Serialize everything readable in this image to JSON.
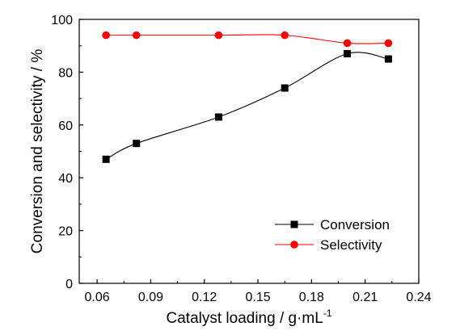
{
  "chart_data": {
    "type": "line",
    "title": "",
    "xlabel": "Catalyst loading / g·mL",
    "xlabel_superscript": "-1",
    "ylabel": "Conversion and selectivity / %",
    "xlim": [
      0.05,
      0.24
    ],
    "ylim": [
      0,
      100
    ],
    "x_ticks": [
      0.06,
      0.09,
      0.12,
      0.15,
      0.18,
      0.21,
      0.24
    ],
    "x_tick_labels": [
      "0.06",
      "0.09",
      "0.12",
      "0.15",
      "0.18",
      "0.21",
      "0.24"
    ],
    "y_ticks": [
      0,
      20,
      40,
      60,
      80,
      100
    ],
    "y_tick_labels": [
      "0",
      "20",
      "40",
      "60",
      "80",
      "100"
    ],
    "grid": false,
    "legend_position": "bottom-right",
    "series": [
      {
        "name": "Conversion",
        "marker": "square",
        "color": "#000000",
        "x": [
          0.065,
          0.082,
          0.128,
          0.165,
          0.2,
          0.223
        ],
        "y": [
          47,
          53,
          63,
          74,
          87,
          85
        ]
      },
      {
        "name": "Selectivity",
        "marker": "circle",
        "color": "#ff0000",
        "x": [
          0.065,
          0.082,
          0.128,
          0.165,
          0.2,
          0.223
        ],
        "y": [
          94,
          94,
          94,
          94,
          91,
          91
        ]
      }
    ]
  }
}
